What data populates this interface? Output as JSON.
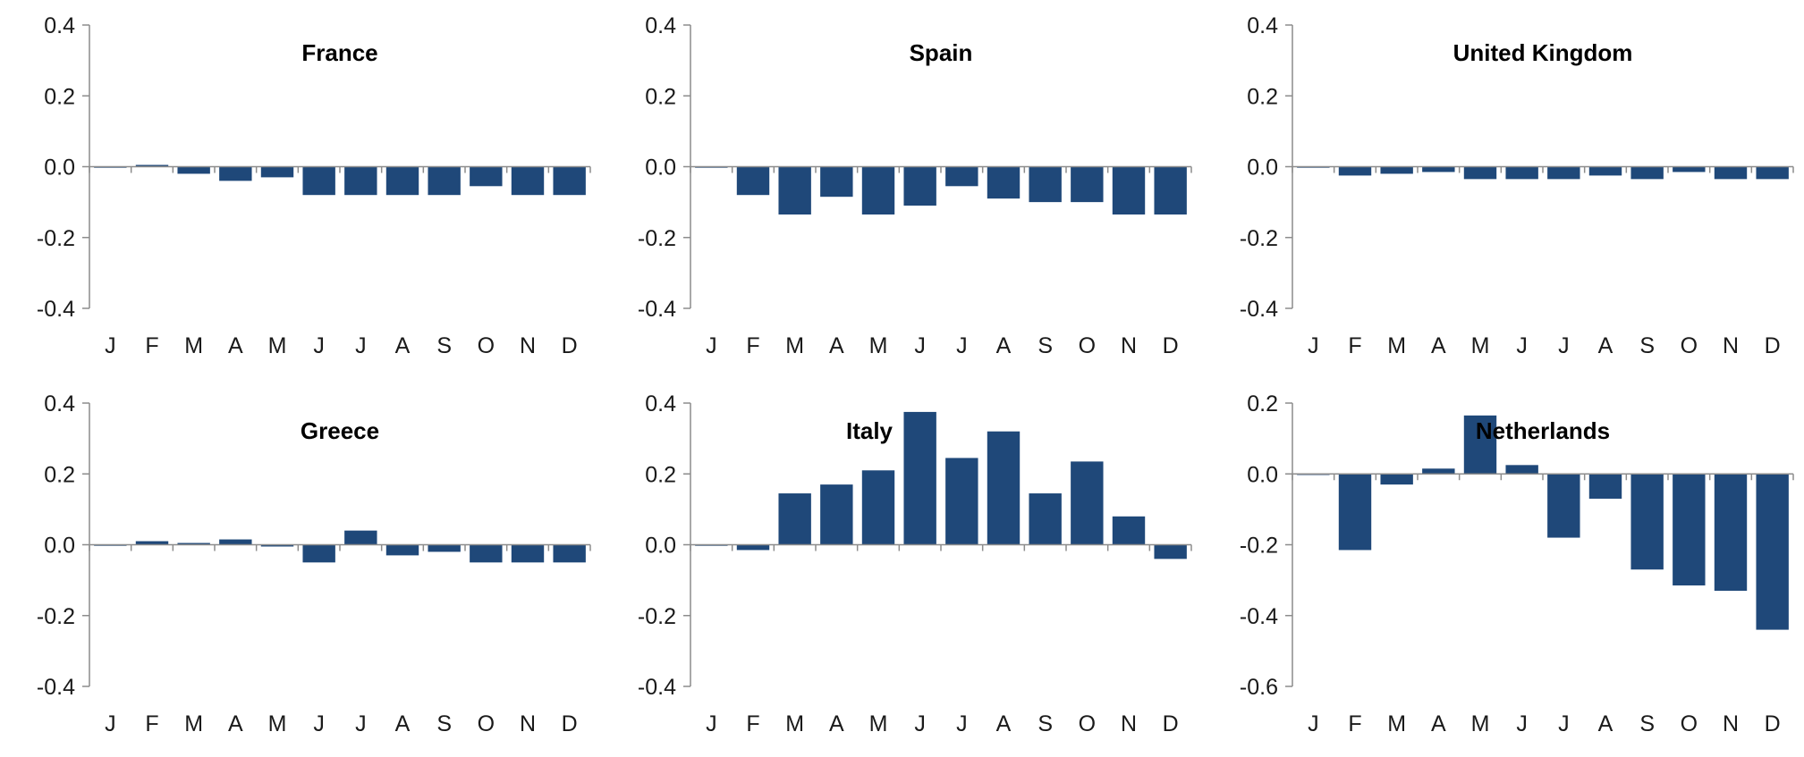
{
  "colors": {
    "bar": "#1f4879",
    "axis": "#8c8c8c",
    "text": "#1a1a1a"
  },
  "chart_data": [
    {
      "type": "bar",
      "title": "France",
      "categories": [
        "J",
        "F",
        "M",
        "A",
        "M",
        "J",
        "J",
        "A",
        "S",
        "O",
        "N",
        "D"
      ],
      "values": [
        0.0,
        0.005,
        -0.02,
        -0.04,
        -0.03,
        -0.08,
        -0.08,
        -0.08,
        -0.08,
        -0.055,
        -0.08,
        -0.08
      ],
      "ylim": [
        -0.4,
        0.4
      ],
      "yticks": [
        "0.4",
        "0.2",
        "0.0",
        "-0.2",
        "-0.4"
      ],
      "xlabel": "",
      "ylabel": "",
      "grid": false
    },
    {
      "type": "bar",
      "title": "Spain",
      "categories": [
        "J",
        "F",
        "M",
        "A",
        "M",
        "J",
        "J",
        "A",
        "S",
        "O",
        "N",
        "D"
      ],
      "values": [
        0.0,
        -0.08,
        -0.135,
        -0.085,
        -0.135,
        -0.11,
        -0.055,
        -0.09,
        -0.1,
        -0.1,
        -0.135,
        -0.135
      ],
      "ylim": [
        -0.4,
        0.4
      ],
      "yticks": [
        "0.4",
        "0.2",
        "0.0",
        "-0.2",
        "-0.4"
      ],
      "xlabel": "",
      "ylabel": "",
      "grid": false
    },
    {
      "type": "bar",
      "title": "United Kingdom",
      "categories": [
        "J",
        "F",
        "M",
        "A",
        "M",
        "J",
        "J",
        "A",
        "S",
        "O",
        "N",
        "D"
      ],
      "values": [
        0.0,
        -0.025,
        -0.02,
        -0.015,
        -0.035,
        -0.035,
        -0.035,
        -0.025,
        -0.035,
        -0.015,
        -0.035,
        -0.035
      ],
      "ylim": [
        -0.4,
        0.4
      ],
      "yticks": [
        "0.4",
        "0.2",
        "0.0",
        "-0.2",
        "-0.4"
      ],
      "xlabel": "",
      "ylabel": "",
      "grid": false
    },
    {
      "type": "bar",
      "title": "Greece",
      "categories": [
        "J",
        "F",
        "M",
        "A",
        "M",
        "J",
        "J",
        "A",
        "S",
        "O",
        "N",
        "D"
      ],
      "values": [
        0.0,
        0.01,
        0.005,
        0.015,
        -0.005,
        -0.05,
        0.04,
        -0.03,
        -0.02,
        -0.05,
        -0.05,
        -0.05
      ],
      "ylim": [
        -0.4,
        0.4
      ],
      "yticks": [
        "0.4",
        "0.2",
        "0.0",
        "-0.2",
        "-0.4"
      ],
      "xlabel": "",
      "ylabel": "",
      "grid": false
    },
    {
      "type": "bar",
      "title": "Italy",
      "categories": [
        "J",
        "F",
        "M",
        "A",
        "M",
        "J",
        "J",
        "A",
        "S",
        "O",
        "N",
        "D"
      ],
      "values": [
        0.0,
        -0.015,
        0.145,
        0.17,
        0.21,
        0.375,
        0.245,
        0.32,
        0.145,
        0.235,
        0.08,
        -0.04
      ],
      "ylim": [
        -0.4,
        0.4
      ],
      "yticks": [
        "0.4",
        "0.2",
        "0.0",
        "-0.2",
        "-0.4"
      ],
      "xlabel": "",
      "ylabel": "",
      "grid": false
    },
    {
      "type": "bar",
      "title": "Netherlands",
      "categories": [
        "J",
        "F",
        "M",
        "A",
        "M",
        "J",
        "J",
        "A",
        "S",
        "O",
        "N",
        "D"
      ],
      "values": [
        0.0,
        -0.215,
        -0.03,
        0.015,
        0.165,
        0.025,
        -0.18,
        -0.07,
        -0.27,
        -0.315,
        -0.33,
        -0.44
      ],
      "ylim": [
        -0.6,
        0.2
      ],
      "yticks": [
        "0.2",
        "0.0",
        "-0.2",
        "-0.4",
        "-0.6"
      ],
      "xlabel": "",
      "ylabel": "",
      "grid": false
    }
  ]
}
